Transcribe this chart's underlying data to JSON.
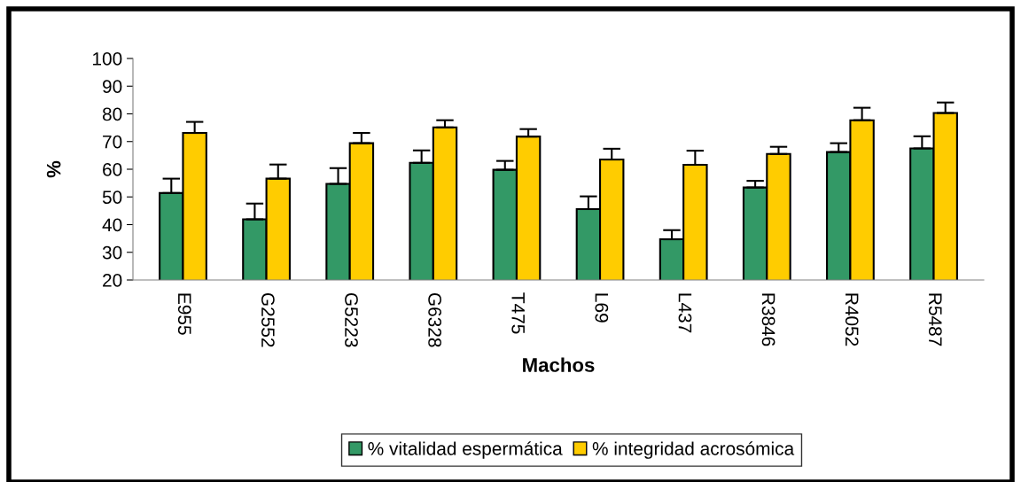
{
  "chart_data": {
    "type": "bar",
    "xlabel": "Machos",
    "ylabel": "%",
    "categories": [
      "E955",
      "G2552",
      "G5223",
      "G6328",
      "T475",
      "L69",
      "L437",
      "R3846",
      "R4052",
      "R5487"
    ],
    "series": [
      {
        "name": "% vitalidad espermática",
        "color": "#339966",
        "values": [
          51.4,
          41.9,
          54.7,
          62.3,
          59.8,
          45.6,
          34.7,
          53.4,
          66.2,
          67.5
        ],
        "errors": [
          [
            51.4,
            56.6
          ],
          [
            41.9,
            47.6
          ],
          [
            54.7,
            60.4
          ],
          [
            62.3,
            66.8
          ],
          [
            59.8,
            63.0
          ],
          [
            45.6,
            50.2
          ],
          [
            34.7,
            38.0
          ],
          [
            53.4,
            55.8
          ],
          [
            66.2,
            69.4
          ],
          [
            67.5,
            71.9
          ]
        ]
      },
      {
        "name": "% integridad acrosómica",
        "color": "#ffcc00",
        "values": [
          73.1,
          56.6,
          69.4,
          75.1,
          71.8,
          63.5,
          61.6,
          65.5,
          77.7,
          80.3
        ],
        "errors": [
          [
            73.1,
            77.1
          ],
          [
            56.6,
            61.7
          ],
          [
            69.4,
            73.1
          ],
          [
            75.1,
            77.7
          ],
          [
            71.8,
            74.5
          ],
          [
            63.5,
            67.4
          ],
          [
            61.6,
            66.7
          ],
          [
            65.5,
            68.1
          ],
          [
            77.7,
            82.2
          ],
          [
            80.3,
            84.1
          ]
        ]
      }
    ],
    "ylim": [
      20,
      100
    ],
    "yticks": [
      20,
      30,
      40,
      50,
      60,
      70,
      80,
      90,
      100
    ],
    "grid": false,
    "legend": "bottom"
  }
}
